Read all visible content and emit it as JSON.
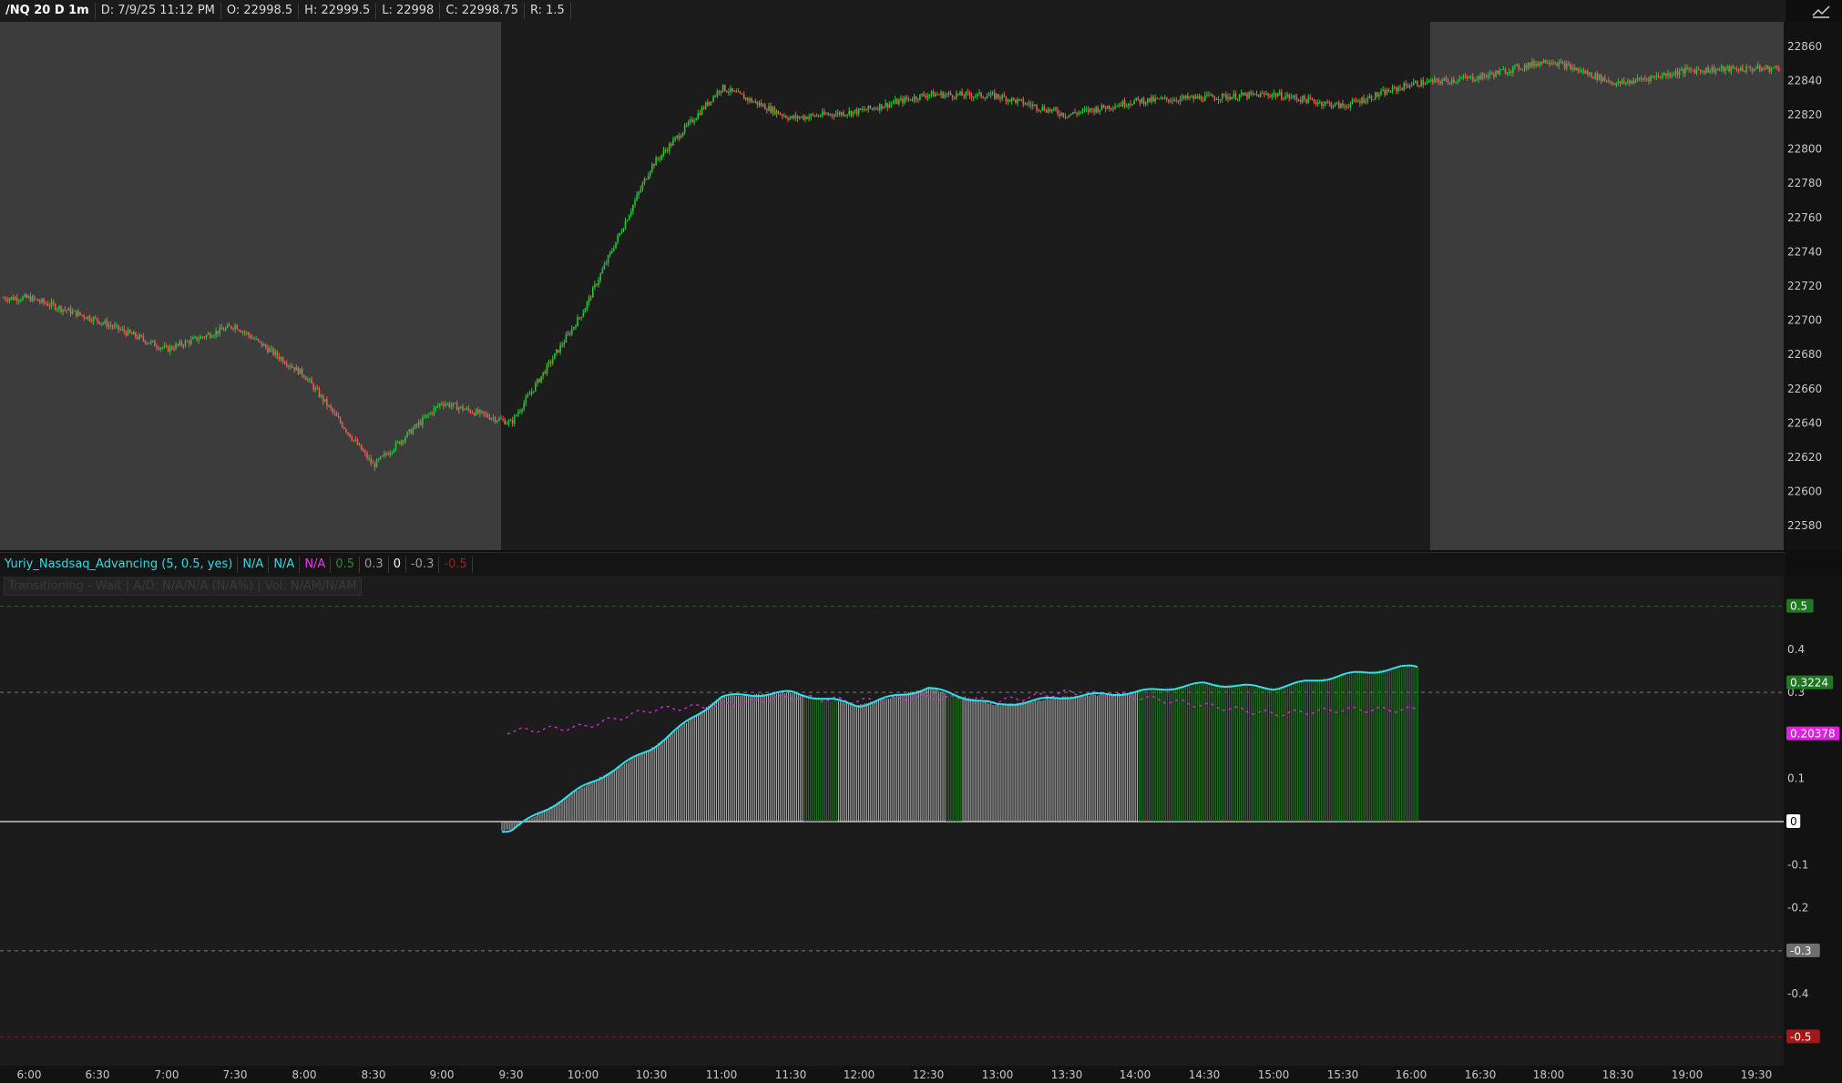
{
  "header": {
    "symbol": "/NQ 20 D 1m",
    "date": "D: 7/9/25 11:12 PM",
    "open": "O: 22998.5",
    "high": "H: 22999.5",
    "low": "L: 22998",
    "close": "C: 22998.75",
    "range": "R: 1.5",
    "corner_icon": "chart-style-icon"
  },
  "price_axis": {
    "ticks": [
      "22860",
      "22840",
      "22820",
      "22800",
      "22780",
      "22760",
      "22740",
      "22720",
      "22700",
      "22680",
      "22660",
      "22640",
      "22620",
      "22600",
      "22580"
    ]
  },
  "indicator": {
    "name": "Yuriy_Nasdsaq_Advancing (5, 0.5, yes)",
    "values": [
      "N/A",
      "N/A",
      "N/A",
      "0.5",
      "0.3",
      "0",
      "-0.3",
      "-0.5"
    ],
    "status": "Transitioning - Wait",
    "ad_text": "A/D: N/A/N/A (N/A%)",
    "vol_text": "Vol: N/AM/N/AM",
    "axis_ticks": [
      "0.4",
      "0.3",
      "0.1",
      "-0.1",
      "-0.2",
      "-0.4"
    ],
    "badges": {
      "upper": "0.5",
      "current": "0.3224",
      "signal": "0.20378",
      "zero": "0",
      "lower": "-0.3",
      "bottom": "-0.5"
    }
  },
  "time_axis": [
    "6:00",
    "6:30",
    "7:00",
    "7:30",
    "8:00",
    "8:30",
    "9:00",
    "9:30",
    "10:00",
    "10:30",
    "11:00",
    "11:30",
    "12:00",
    "12:30",
    "13:00",
    "13:30",
    "14:00",
    "14:30",
    "15:00",
    "15:30",
    "16:00",
    "16:30",
    "18:00",
    "18:30",
    "19:00",
    "19:30"
  ],
  "colors": {
    "up": "#1ec832",
    "down": "#e8595b",
    "extended_bg": "#3c3c3c",
    "session_bg": "#1c1c1c",
    "osc_line": "#2ee0ea",
    "signal_line": "#e020e0",
    "green_hist": "#1f7a1f",
    "gray_hist": "#d0d0d0"
  },
  "chart_data": [
    {
      "type": "line",
      "title": "/NQ 20 D 1m",
      "x": [
        "6:00",
        "6:30",
        "7:00",
        "7:30",
        "8:00",
        "8:30",
        "9:00",
        "9:30",
        "10:00",
        "10:30",
        "11:00",
        "11:30",
        "12:00",
        "12:30",
        "13:00",
        "13:30",
        "14:00",
        "14:30",
        "15:00",
        "15:30",
        "16:00",
        "16:30",
        "18:00",
        "18:30",
        "19:00",
        "19:30"
      ],
      "series": [
        {
          "values": [
            22713,
            22700,
            22683,
            22697,
            22668,
            22615,
            22652,
            22640,
            22705,
            22790,
            22836,
            22818,
            22822,
            22832,
            22831,
            22820,
            22828,
            22830,
            22832,
            22825,
            22838,
            22842,
            22852,
            22838,
            22846,
            22847
          ]
        }
      ],
      "ylim": [
        22570,
        22870
      ]
    },
    {
      "type": "line",
      "title": "Yuriy_Nasdsaq_Advancing (5, 0.5, yes)",
      "x": [
        "9:30",
        "10:00",
        "10:30",
        "11:00",
        "11:30",
        "12:00",
        "12:30",
        "13:00",
        "13:30",
        "14:00",
        "14:30",
        "15:00",
        "15:30",
        "16:00"
      ],
      "series": [
        {
          "values": [
            -0.02,
            0.08,
            0.17,
            0.29,
            0.3,
            0.27,
            0.31,
            0.27,
            0.29,
            0.3,
            0.32,
            0.31,
            0.34,
            0.36
          ]
        },
        {
          "values": [
            0.21,
            0.22,
            0.26,
            0.27,
            0.29,
            0.28,
            0.29,
            0.28,
            0.3,
            0.29,
            0.27,
            0.25,
            0.26,
            0.26
          ]
        }
      ],
      "ylim": [
        -0.55,
        0.55
      ]
    }
  ]
}
